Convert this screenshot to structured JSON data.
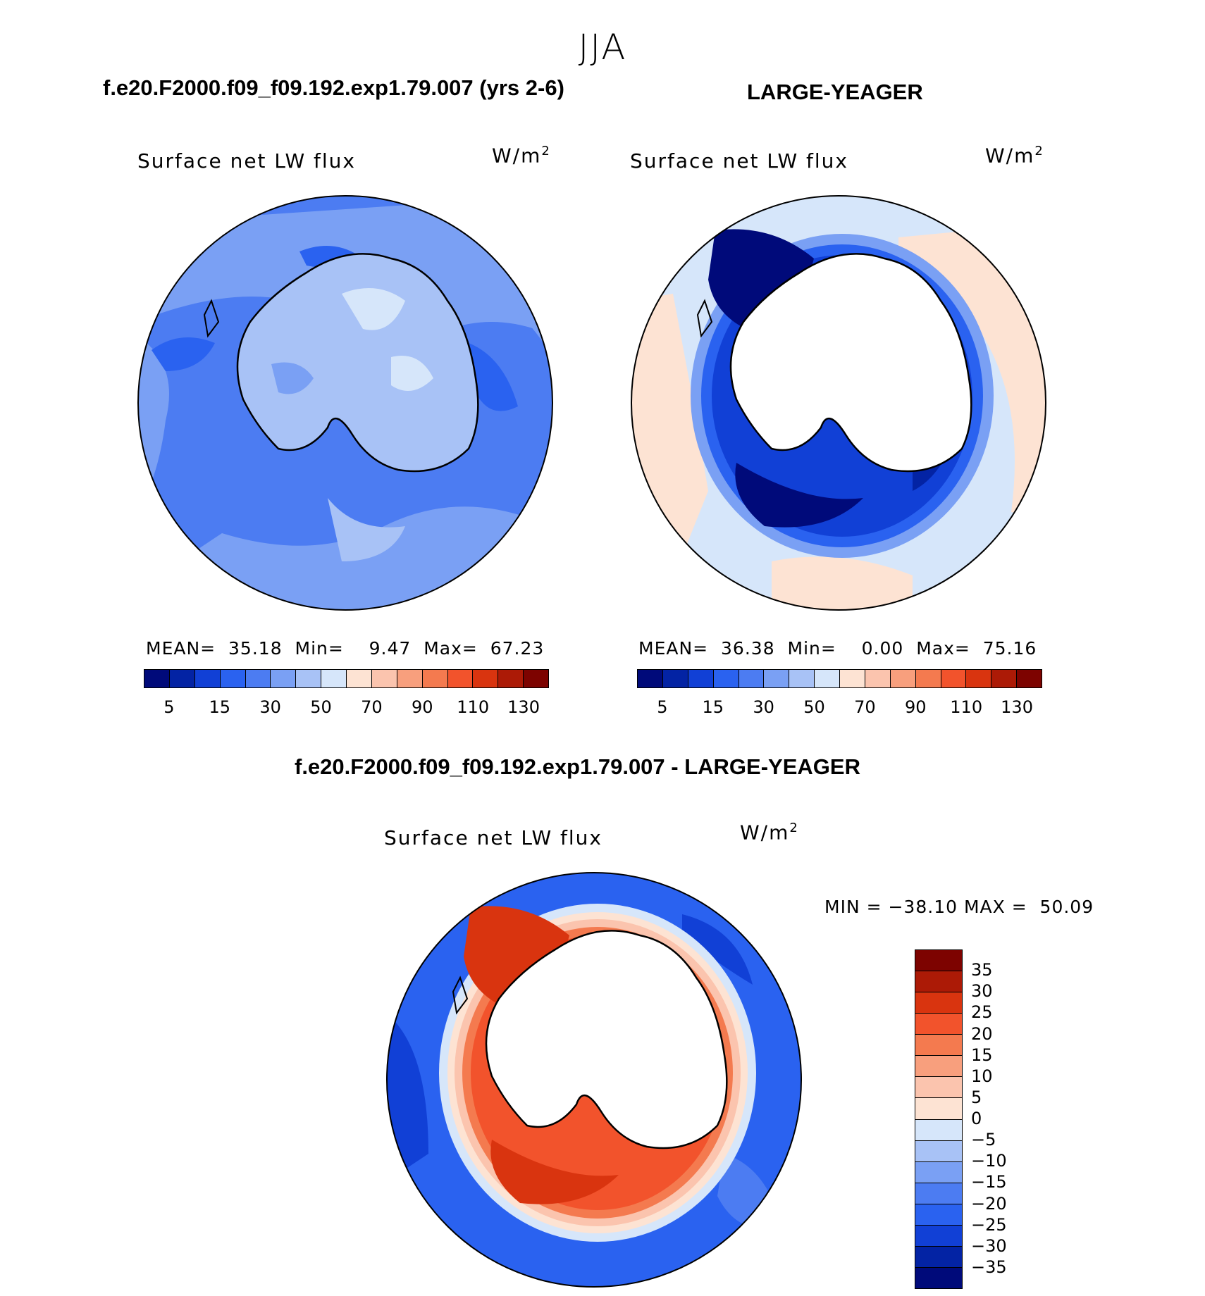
{
  "season": "JJA",
  "panels": [
    {
      "title": "f.e20.F2000.f09_f09.192.exp1.79.007 (yrs 2-6)",
      "variable": "Surface net LW flux",
      "units_base": "W/m",
      "units_exp": "2",
      "stats": {
        "mean_label": "MEAN=",
        "mean": "35.18",
        "min_label": "Min=",
        "min": "9.47",
        "max_label": "Max=",
        "max": "67.23"
      },
      "colorbar_ticks": [
        "5",
        "15",
        "30",
        "50",
        "70",
        "90",
        "110",
        "130"
      ]
    },
    {
      "title": "LARGE-YEAGER",
      "variable": "Surface net LW flux",
      "units_base": "W/m",
      "units_exp": "2",
      "stats": {
        "mean_label": "MEAN=",
        "mean": "36.38",
        "min_label": "Min=",
        "min": "0.00",
        "max_label": "Max=",
        "max": "75.16"
      },
      "colorbar_ticks": [
        "5",
        "15",
        "30",
        "50",
        "70",
        "90",
        "110",
        "130"
      ]
    },
    {
      "title": "f.e20.F2000.f09_f09.192.exp1.79.007 - LARGE-YEAGER",
      "variable": "Surface net LW flux",
      "units_base": "W/m",
      "units_exp": "2",
      "stats_text": "MIN = −38.10 MAX =  50.09",
      "colorbar_ticks": [
        "35",
        "30",
        "25",
        "20",
        "15",
        "10",
        "5",
        "0",
        "−5",
        "−10",
        "−15",
        "−20",
        "−25",
        "−30",
        "−35"
      ]
    }
  ],
  "colormaps": {
    "abs": [
      "#000a7a",
      "#0323a4",
      "#1140d6",
      "#2a62f0",
      "#4c7cf2",
      "#7aa0f4",
      "#a8c2f6",
      "#d6e6fa",
      "#fde3d3",
      "#fbc4ae",
      "#f89f7d",
      "#f47a4f",
      "#f2532c",
      "#d9340f",
      "#ac1a06",
      "#7d0300"
    ],
    "diff": [
      "#7d0300",
      "#ac1a06",
      "#d9340f",
      "#f2532c",
      "#f47a4f",
      "#f89f7d",
      "#fbc4ae",
      "#fde3d3",
      "#d6e6fa",
      "#a8c2f6",
      "#7aa0f4",
      "#4c7cf2",
      "#2a62f0",
      "#1140d6",
      "#0323a4",
      "#000a7a"
    ]
  }
}
